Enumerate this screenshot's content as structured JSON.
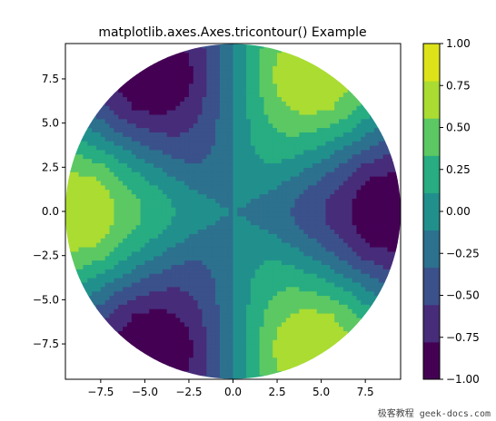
{
  "chart_data": {
    "type": "tricontour",
    "title": "matplotlib.axes.Axes.tricontour() Example",
    "xlabel": "",
    "ylabel": "",
    "xlim": [
      -9.5,
      9.5
    ],
    "ylim": [
      -9.5,
      9.5
    ],
    "x_ticks": [
      -7.5,
      -5.0,
      -2.5,
      0.0,
      2.5,
      5.0,
      7.5
    ],
    "x_tick_labels": [
      "−7.5",
      "−5.0",
      "−2.5",
      "0.0",
      "2.5",
      "5.0",
      "7.5"
    ],
    "y_ticks": [
      7.5,
      5.0,
      2.5,
      0.0,
      -2.5,
      -5.0,
      -7.5
    ],
    "y_tick_labels": [
      "7.5",
      "5.0",
      "2.5",
      "0.0",
      "−2.5",
      "−5.0",
      "−7.5"
    ],
    "domain_radius": 9.5,
    "field_description": "cos(3*theta) lobes: three maxima at angles 0°, 60°, 180° side ≈ +1, three minima ≈ −1",
    "maxima": [
      [
        -9.0,
        0.0
      ],
      [
        4.0,
        7.5
      ],
      [
        4.0,
        -7.5
      ]
    ],
    "minima": [
      [
        -4.0,
        7.5
      ],
      [
        9.0,
        0.0
      ],
      [
        -4.0,
        -7.5
      ]
    ],
    "contour_levels": [
      -1.0,
      -0.75,
      -0.5,
      -0.25,
      0.0,
      0.25,
      0.5,
      0.75,
      1.0
    ],
    "colorbar": {
      "ticks": [
        1.0,
        0.75,
        0.5,
        0.25,
        0.0,
        -0.25,
        -0.5,
        -0.75,
        -1.0
      ],
      "tick_labels": [
        "1.00",
        "0.75",
        "0.50",
        "0.25",
        "0.00",
        "−0.25",
        "−0.50",
        "−0.75",
        "−1.00"
      ],
      "colors": [
        "#440154",
        "#472c7a",
        "#3b518b",
        "#2c718e",
        "#21908d",
        "#27ad81",
        "#5cc863",
        "#aadc32",
        "#dde318"
      ]
    },
    "line_color": "#008000",
    "grid": false
  },
  "watermark": "极客教程 geek-docs.com"
}
